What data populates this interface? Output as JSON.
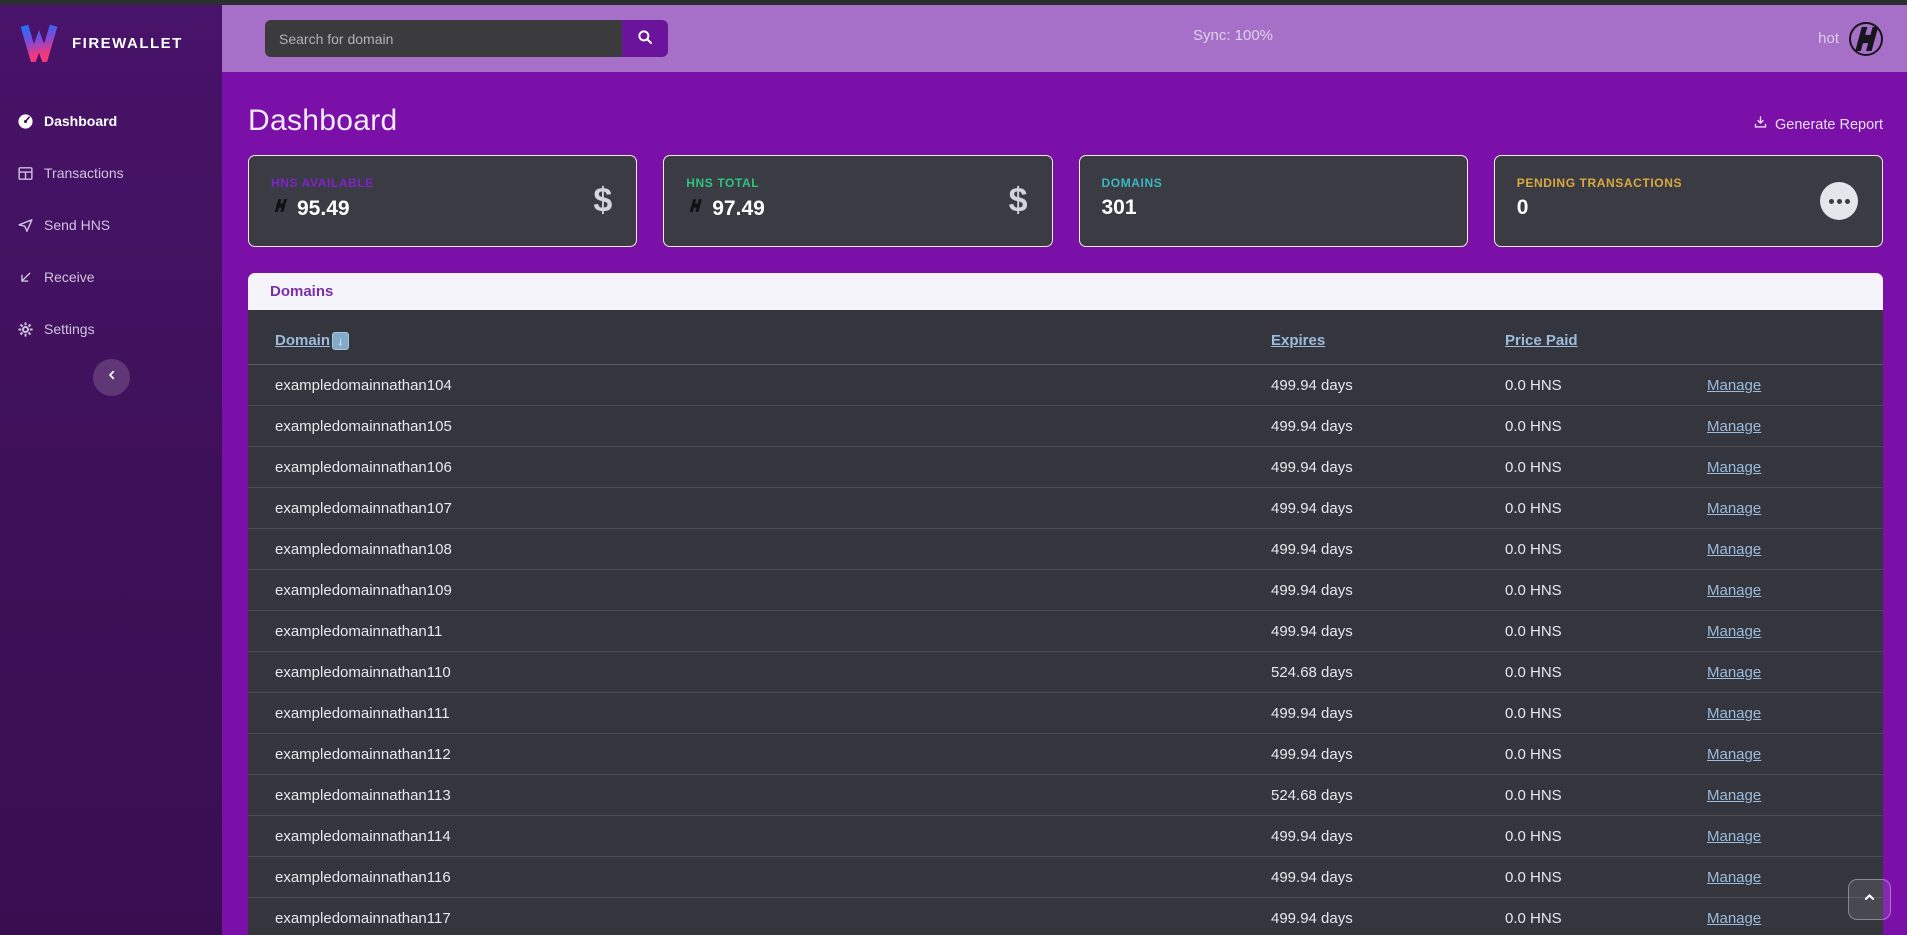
{
  "brand": {
    "name": "FIREWALLET"
  },
  "topbar": {
    "search_placeholder": "Search for domain",
    "sync_label": "Sync: 100%",
    "wallet_name": "hot"
  },
  "sidebar": {
    "items": [
      {
        "label": "Dashboard",
        "icon": "speedometer-icon",
        "active": true
      },
      {
        "label": "Transactions",
        "icon": "table-icon",
        "active": false
      },
      {
        "label": "Send HNS",
        "icon": "send-icon",
        "active": false
      },
      {
        "label": "Receive",
        "icon": "receive-icon",
        "active": false
      },
      {
        "label": "Settings",
        "icon": "gear-icon",
        "active": false
      }
    ]
  },
  "page": {
    "title": "Dashboard",
    "generate_report_label": "Generate Report"
  },
  "stat_cards": [
    {
      "label": "HNS AVAILABLE",
      "value": "95.49",
      "label_color": "#7e22cc",
      "right_icon": "dollar-icon",
      "has_hns_glyph": true
    },
    {
      "label": "HNS TOTAL",
      "value": "97.49",
      "label_color": "#2ec47e",
      "right_icon": "dollar-icon",
      "has_hns_glyph": true
    },
    {
      "label": "DOMAINS",
      "value": "301",
      "label_color": "#3bb8c4",
      "right_icon": "none",
      "has_hns_glyph": false
    },
    {
      "label": "PENDING TRANSACTIONS",
      "value": "0",
      "label_color": "#dba93f",
      "right_icon": "ellipsis-icon",
      "has_hns_glyph": false
    }
  ],
  "domains_panel": {
    "title": "Domains",
    "columns": [
      {
        "label": "Domain",
        "sort_arrow": "⬇"
      },
      {
        "label": "Expires"
      },
      {
        "label": "Price Paid"
      }
    ],
    "action_label": "Manage",
    "rows": [
      {
        "domain": "exampledomainnathan104",
        "expires": "499.94 days",
        "price": "0.0 HNS"
      },
      {
        "domain": "exampledomainnathan105",
        "expires": "499.94 days",
        "price": "0.0 HNS"
      },
      {
        "domain": "exampledomainnathan106",
        "expires": "499.94 days",
        "price": "0.0 HNS"
      },
      {
        "domain": "exampledomainnathan107",
        "expires": "499.94 days",
        "price": "0.0 HNS"
      },
      {
        "domain": "exampledomainnathan108",
        "expires": "499.94 days",
        "price": "0.0 HNS"
      },
      {
        "domain": "exampledomainnathan109",
        "expires": "499.94 days",
        "price": "0.0 HNS"
      },
      {
        "domain": "exampledomainnathan11",
        "expires": "499.94 days",
        "price": "0.0 HNS"
      },
      {
        "domain": "exampledomainnathan110",
        "expires": "524.68 days",
        "price": "0.0 HNS"
      },
      {
        "domain": "exampledomainnathan111",
        "expires": "499.94 days",
        "price": "0.0 HNS"
      },
      {
        "domain": "exampledomainnathan112",
        "expires": "499.94 days",
        "price": "0.0 HNS"
      },
      {
        "domain": "exampledomainnathan113",
        "expires": "524.68 days",
        "price": "0.0 HNS"
      },
      {
        "domain": "exampledomainnathan114",
        "expires": "499.94 days",
        "price": "0.0 HNS"
      },
      {
        "domain": "exampledomainnathan116",
        "expires": "499.94 days",
        "price": "0.0 HNS"
      },
      {
        "domain": "exampledomainnathan117",
        "expires": "499.94 days",
        "price": "0.0 HNS"
      }
    ]
  },
  "colors": {
    "main_bg": "#7a10a8",
    "sidebar_bg": "#401159",
    "topbar_bg": "#a770c8",
    "card_bg": "#3a3b43",
    "table_bg": "#34353d",
    "link_blue": "#9cbcdd",
    "panel_title": "#7b2fa5"
  }
}
